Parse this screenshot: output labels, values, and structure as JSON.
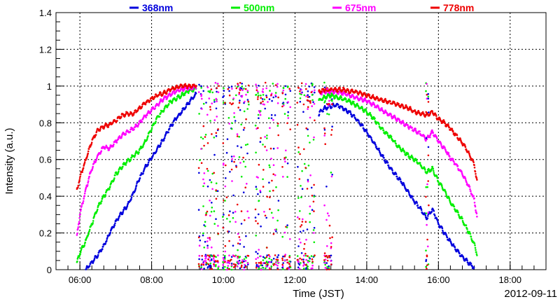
{
  "chart_data": {
    "type": "scatter",
    "xlabel": "Time (JST)",
    "ylabel": "Intensity (a.u.)",
    "date_label": "2012-09-11",
    "xlim": [
      "05:20",
      "19:00"
    ],
    "ylim": [
      0,
      1.4
    ],
    "x_ticks": [
      "06:00",
      "08:00",
      "10:00",
      "12:00",
      "14:00",
      "16:00",
      "18:00"
    ],
    "y_ticks": [
      "0",
      "0.2",
      "0.4",
      "0.6",
      "0.8",
      "1",
      "1.2",
      "1.4"
    ],
    "grid": true,
    "legend_position": "top",
    "series": [
      {
        "name": "368nm",
        "color": "#0000dd",
        "points": [
          [
            "06:10",
            0.0
          ],
          [
            "06:20",
            0.04
          ],
          [
            "06:30",
            0.08
          ],
          [
            "06:40",
            0.13
          ],
          [
            "06:50",
            0.2
          ],
          [
            "07:00",
            0.26
          ],
          [
            "07:10",
            0.31
          ],
          [
            "07:20",
            0.35
          ],
          [
            "07:30",
            0.42
          ],
          [
            "07:40",
            0.5
          ],
          [
            "07:50",
            0.56
          ],
          [
            "08:00",
            0.61
          ],
          [
            "08:10",
            0.66
          ],
          [
            "08:20",
            0.71
          ],
          [
            "08:30",
            0.77
          ],
          [
            "08:40",
            0.82
          ],
          [
            "08:50",
            0.86
          ],
          [
            "09:00",
            0.9
          ],
          [
            "09:10",
            0.94
          ],
          [
            "09:15",
            0.96
          ],
          [
            "12:40",
            0.85
          ],
          [
            "12:50",
            0.88
          ],
          [
            "13:00",
            0.89
          ],
          [
            "13:10",
            0.9
          ],
          [
            "13:20",
            0.88
          ],
          [
            "13:30",
            0.86
          ],
          [
            "13:40",
            0.83
          ],
          [
            "13:50",
            0.79
          ],
          [
            "14:00",
            0.75
          ],
          [
            "14:10",
            0.7
          ],
          [
            "14:20",
            0.65
          ],
          [
            "14:30",
            0.6
          ],
          [
            "14:40",
            0.55
          ],
          [
            "14:50",
            0.51
          ],
          [
            "15:00",
            0.47
          ],
          [
            "15:10",
            0.42
          ],
          [
            "15:20",
            0.37
          ],
          [
            "15:30",
            0.33
          ],
          [
            "15:40",
            0.28
          ],
          [
            "15:50",
            0.33
          ],
          [
            "16:00",
            0.25
          ],
          [
            "16:10",
            0.2
          ],
          [
            "16:20",
            0.15
          ],
          [
            "16:30",
            0.11
          ],
          [
            "16:40",
            0.07
          ],
          [
            "16:50",
            0.04
          ],
          [
            "17:00",
            0.01
          ]
        ]
      },
      {
        "name": "500nm",
        "color": "#00ee00",
        "points": [
          [
            "05:55",
            0.04
          ],
          [
            "06:00",
            0.09
          ],
          [
            "06:10",
            0.16
          ],
          [
            "06:20",
            0.25
          ],
          [
            "06:30",
            0.34
          ],
          [
            "06:40",
            0.4
          ],
          [
            "06:50",
            0.45
          ],
          [
            "07:00",
            0.52
          ],
          [
            "07:10",
            0.56
          ],
          [
            "07:20",
            0.59
          ],
          [
            "07:30",
            0.62
          ],
          [
            "07:40",
            0.65
          ],
          [
            "07:50",
            0.7
          ],
          [
            "08:00",
            0.77
          ],
          [
            "08:10",
            0.83
          ],
          [
            "08:20",
            0.87
          ],
          [
            "08:30",
            0.91
          ],
          [
            "08:40",
            0.93
          ],
          [
            "08:50",
            0.95
          ],
          [
            "09:00",
            0.97
          ],
          [
            "09:10",
            0.98
          ],
          [
            "09:15",
            0.99
          ],
          [
            "12:40",
            0.92
          ],
          [
            "12:50",
            0.94
          ],
          [
            "13:00",
            0.95
          ],
          [
            "13:10",
            0.94
          ],
          [
            "13:20",
            0.93
          ],
          [
            "13:30",
            0.92
          ],
          [
            "13:40",
            0.9
          ],
          [
            "13:50",
            0.88
          ],
          [
            "14:00",
            0.86
          ],
          [
            "14:10",
            0.83
          ],
          [
            "14:20",
            0.79
          ],
          [
            "14:30",
            0.75
          ],
          [
            "14:40",
            0.72
          ],
          [
            "14:50",
            0.68
          ],
          [
            "15:00",
            0.65
          ],
          [
            "15:10",
            0.62
          ],
          [
            "15:20",
            0.6
          ],
          [
            "15:30",
            0.57
          ],
          [
            "15:40",
            0.53
          ],
          [
            "15:50",
            0.55
          ],
          [
            "16:00",
            0.48
          ],
          [
            "16:10",
            0.43
          ],
          [
            "16:20",
            0.37
          ],
          [
            "16:30",
            0.32
          ],
          [
            "16:40",
            0.27
          ],
          [
            "16:50",
            0.21
          ],
          [
            "17:00",
            0.14
          ],
          [
            "17:05",
            0.08
          ]
        ]
      },
      {
        "name": "675nm",
        "color": "#ff00ff",
        "points": [
          [
            "05:55",
            0.18
          ],
          [
            "06:00",
            0.3
          ],
          [
            "06:10",
            0.44
          ],
          [
            "06:20",
            0.55
          ],
          [
            "06:30",
            0.62
          ],
          [
            "06:40",
            0.67
          ],
          [
            "06:50",
            0.66
          ],
          [
            "07:00",
            0.7
          ],
          [
            "07:10",
            0.73
          ],
          [
            "07:20",
            0.75
          ],
          [
            "07:30",
            0.77
          ],
          [
            "07:40",
            0.8
          ],
          [
            "07:50",
            0.84
          ],
          [
            "08:00",
            0.87
          ],
          [
            "08:10",
            0.9
          ],
          [
            "08:20",
            0.93
          ],
          [
            "08:30",
            0.95
          ],
          [
            "08:40",
            0.97
          ],
          [
            "08:50",
            0.98
          ],
          [
            "09:00",
            0.99
          ],
          [
            "09:10",
            0.99
          ],
          [
            "09:15",
            1.0
          ],
          [
            "12:40",
            0.96
          ],
          [
            "12:50",
            0.97
          ],
          [
            "13:00",
            0.97
          ],
          [
            "13:10",
            0.97
          ],
          [
            "13:20",
            0.96
          ],
          [
            "13:30",
            0.95
          ],
          [
            "13:40",
            0.94
          ],
          [
            "13:50",
            0.93
          ],
          [
            "14:00",
            0.92
          ],
          [
            "14:10",
            0.9
          ],
          [
            "14:20",
            0.88
          ],
          [
            "14:30",
            0.86
          ],
          [
            "14:40",
            0.84
          ],
          [
            "14:50",
            0.82
          ],
          [
            "15:00",
            0.8
          ],
          [
            "15:10",
            0.78
          ],
          [
            "15:20",
            0.76
          ],
          [
            "15:30",
            0.74
          ],
          [
            "15:40",
            0.71
          ],
          [
            "15:50",
            0.75
          ],
          [
            "16:00",
            0.7
          ],
          [
            "16:10",
            0.66
          ],
          [
            "16:20",
            0.61
          ],
          [
            "16:30",
            0.57
          ],
          [
            "16:40",
            0.52
          ],
          [
            "16:50",
            0.46
          ],
          [
            "17:00",
            0.38
          ],
          [
            "17:05",
            0.28
          ]
        ]
      },
      {
        "name": "778nm",
        "color": "#ee0000",
        "points": [
          [
            "05:55",
            0.43
          ],
          [
            "06:00",
            0.5
          ],
          [
            "06:10",
            0.6
          ],
          [
            "06:20",
            0.7
          ],
          [
            "06:30",
            0.76
          ],
          [
            "06:40",
            0.78
          ],
          [
            "06:50",
            0.79
          ],
          [
            "07:00",
            0.81
          ],
          [
            "07:10",
            0.84
          ],
          [
            "07:20",
            0.85
          ],
          [
            "07:30",
            0.85
          ],
          [
            "07:40",
            0.88
          ],
          [
            "07:50",
            0.91
          ],
          [
            "08:00",
            0.93
          ],
          [
            "08:10",
            0.95
          ],
          [
            "08:20",
            0.96
          ],
          [
            "08:30",
            0.98
          ],
          [
            "08:40",
            0.99
          ],
          [
            "08:50",
            1.0
          ],
          [
            "09:00",
            1.0
          ],
          [
            "09:10",
            1.0
          ],
          [
            "09:15",
            1.01
          ],
          [
            "12:40",
            0.97
          ],
          [
            "12:50",
            0.98
          ],
          [
            "13:00",
            0.98
          ],
          [
            "13:10",
            0.98
          ],
          [
            "13:20",
            0.98
          ],
          [
            "13:30",
            0.97
          ],
          [
            "13:40",
            0.97
          ],
          [
            "13:50",
            0.96
          ],
          [
            "14:00",
            0.95
          ],
          [
            "14:10",
            0.94
          ],
          [
            "14:20",
            0.93
          ],
          [
            "14:30",
            0.92
          ],
          [
            "14:40",
            0.91
          ],
          [
            "14:50",
            0.9
          ],
          [
            "15:00",
            0.89
          ],
          [
            "15:10",
            0.88
          ],
          [
            "15:20",
            0.86
          ],
          [
            "15:30",
            0.85
          ],
          [
            "15:40",
            0.84
          ],
          [
            "15:50",
            0.86
          ],
          [
            "16:00",
            0.82
          ],
          [
            "16:10",
            0.8
          ],
          [
            "16:20",
            0.77
          ],
          [
            "16:30",
            0.73
          ],
          [
            "16:40",
            0.69
          ],
          [
            "16:50",
            0.64
          ],
          [
            "17:00",
            0.57
          ],
          [
            "17:05",
            0.47
          ]
        ]
      }
    ],
    "scatter_intervals": [
      [
        "09:20",
        "09:55"
      ],
      [
        "10:00",
        "10:45"
      ],
      [
        "10:55",
        "11:35"
      ],
      [
        "11:40",
        "11:55"
      ],
      [
        "12:05",
        "12:35"
      ],
      [
        "12:50",
        "13:05"
      ],
      [
        "15:40",
        "15:45"
      ]
    ]
  }
}
